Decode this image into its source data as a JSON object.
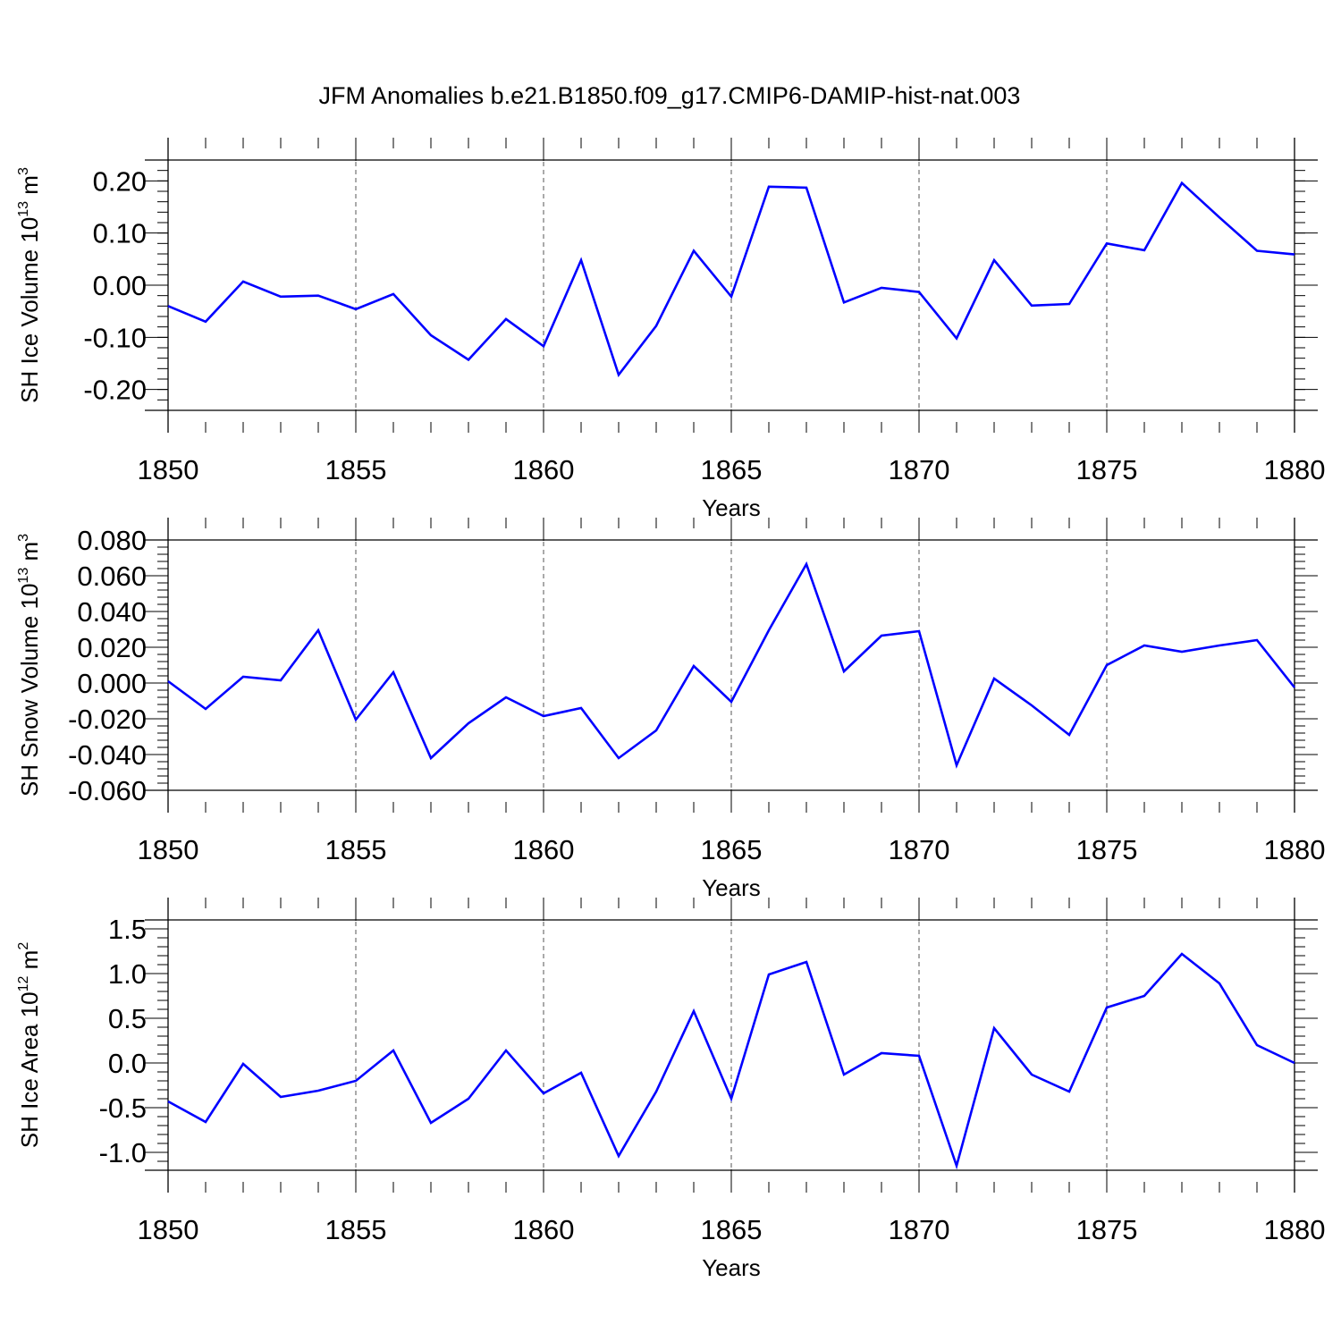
{
  "title": "JFM Anomalies b.e21.B1850.f09_g17.CMIP6-DAMIP-hist-nat.003",
  "chart_data": [
    {
      "type": "line",
      "ylabel": "SH Ice Volume 10",
      "ylabel_exp": "13",
      "ylabel_unit": " m",
      "ylabel_unit_exp": "3",
      "xlabel": "Years",
      "xlim": [
        1850,
        1880
      ],
      "ylim": [
        -0.24,
        0.24
      ],
      "yticks": [
        -0.2,
        -0.1,
        0.0,
        0.1,
        0.2
      ],
      "yticklabels": [
        "-0.20",
        "-0.10",
        "0.00",
        "0.10",
        "0.20"
      ],
      "ytick_minor_step": 0.02,
      "xticks": [
        1850,
        1855,
        1860,
        1865,
        1870,
        1875,
        1880
      ],
      "xticklabels": [
        "1850",
        "1855",
        "1860",
        "1865",
        "1870",
        "1875",
        "1880"
      ],
      "grid": "vertical dashed at labeled years",
      "series": [
        {
          "color": "#0000ff",
          "x": [
            1850,
            1851,
            1852,
            1853,
            1854,
            1855,
            1856,
            1857,
            1858,
            1859,
            1860,
            1861,
            1862,
            1863,
            1864,
            1865,
            1866,
            1867,
            1868,
            1869,
            1870,
            1871,
            1872,
            1873,
            1874,
            1875,
            1876,
            1877,
            1878,
            1879,
            1880
          ],
          "y": [
            -0.04,
            -0.07,
            0.007,
            -0.022,
            -0.02,
            -0.046,
            -0.017,
            -0.096,
            -0.143,
            -0.065,
            -0.117,
            0.048,
            -0.172,
            -0.078,
            0.066,
            -0.022,
            0.189,
            0.187,
            -0.033,
            -0.005,
            -0.013,
            -0.102,
            0.048,
            -0.039,
            -0.036,
            0.08,
            0.067,
            0.196,
            0.13,
            0.066,
            0.059
          ]
        }
      ]
    },
    {
      "type": "line",
      "ylabel": "SH Snow Volume 10",
      "ylabel_exp": "13",
      "ylabel_unit": " m",
      "ylabel_unit_exp": "3",
      "xlabel": "Years",
      "xlim": [
        1850,
        1880
      ],
      "ylim": [
        -0.06,
        0.08
      ],
      "yticks": [
        -0.06,
        -0.04,
        -0.02,
        0.0,
        0.02,
        0.04,
        0.06,
        0.08
      ],
      "yticklabels": [
        "-0.060",
        "-0.040",
        "-0.020",
        "0.000",
        "0.020",
        "0.040",
        "0.060",
        "0.080"
      ],
      "ytick_minor_step": 0.004,
      "xticks": [
        1850,
        1855,
        1860,
        1865,
        1870,
        1875,
        1880
      ],
      "xticklabels": [
        "1850",
        "1855",
        "1860",
        "1865",
        "1870",
        "1875",
        "1880"
      ],
      "grid": "vertical dashed at labeled years",
      "series": [
        {
          "color": "#0000ff",
          "x": [
            1850,
            1851,
            1852,
            1853,
            1854,
            1855,
            1856,
            1857,
            1858,
            1859,
            1860,
            1861,
            1862,
            1863,
            1864,
            1865,
            1866,
            1867,
            1868,
            1869,
            1870,
            1871,
            1872,
            1873,
            1874,
            1875,
            1876,
            1877,
            1878,
            1879,
            1880
          ],
          "y": [
            0.001,
            -0.0145,
            0.0035,
            0.0015,
            0.0295,
            -0.0205,
            0.006,
            -0.042,
            -0.0225,
            -0.008,
            -0.0185,
            -0.014,
            -0.042,
            -0.0265,
            0.0095,
            -0.0105,
            0.0295,
            0.0665,
            0.0065,
            0.0265,
            0.029,
            -0.046,
            0.0025,
            -0.0125,
            -0.029,
            0.01,
            0.021,
            0.0175,
            0.021,
            0.024,
            -0.0025
          ]
        }
      ]
    },
    {
      "type": "line",
      "ylabel": "SH Ice Area 10",
      "ylabel_exp": "12",
      "ylabel_unit": " m",
      "ylabel_unit_exp": "2",
      "xlabel": "Years",
      "xlim": [
        1850,
        1880
      ],
      "ylim": [
        -1.2,
        1.6
      ],
      "yticks": [
        -1.0,
        -0.5,
        0.0,
        0.5,
        1.0,
        1.5
      ],
      "yticklabels": [
        "-1.0",
        "-0.5",
        "0.0",
        "0.5",
        "1.0",
        "1.5"
      ],
      "ytick_minor_step": 0.1,
      "xticks": [
        1850,
        1855,
        1860,
        1865,
        1870,
        1875,
        1880
      ],
      "xticklabels": [
        "1850",
        "1855",
        "1860",
        "1865",
        "1870",
        "1875",
        "1880"
      ],
      "grid": "vertical dashed at labeled years",
      "series": [
        {
          "color": "#0000ff",
          "x": [
            1850,
            1851,
            1852,
            1853,
            1854,
            1855,
            1856,
            1857,
            1858,
            1859,
            1860,
            1861,
            1862,
            1863,
            1864,
            1865,
            1866,
            1867,
            1868,
            1869,
            1870,
            1871,
            1872,
            1873,
            1874,
            1875,
            1876,
            1877,
            1878,
            1879,
            1880
          ],
          "y": [
            -0.43,
            -0.66,
            -0.01,
            -0.38,
            -0.31,
            -0.2,
            0.14,
            -0.67,
            -0.4,
            0.14,
            -0.34,
            -0.11,
            -1.04,
            -0.32,
            0.58,
            -0.4,
            0.99,
            1.13,
            -0.13,
            0.11,
            0.08,
            -1.15,
            0.39,
            -0.13,
            -0.32,
            0.62,
            0.75,
            1.22,
            0.89,
            0.2,
            0.0
          ]
        }
      ]
    }
  ]
}
